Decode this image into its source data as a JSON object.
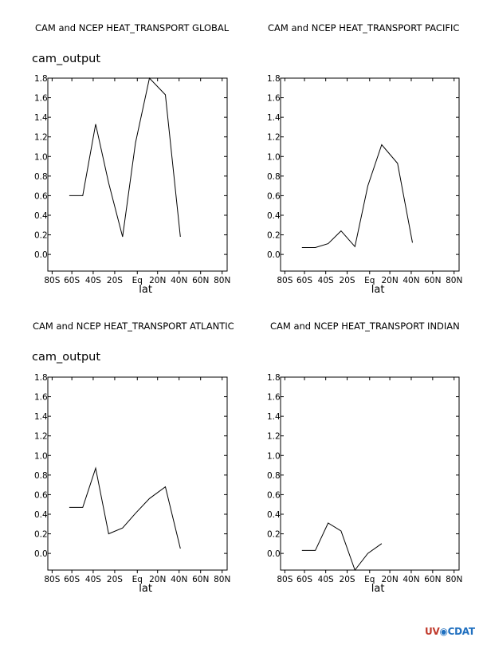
{
  "chart_data": [
    {
      "type": "line",
      "title": "CAM and NCEP HEAT_TRANSPORT GLOBAL",
      "subtitle": "cam_output",
      "xlabel": "lat",
      "ylabel": "",
      "x_ticks": [
        "80S",
        "60S",
        "40S",
        "20S",
        "Eq",
        "20N",
        "40N",
        "60N",
        "80N"
      ],
      "y_ticks": [
        "0.0",
        "0.2",
        "0.4",
        "0.6",
        "0.8",
        "1.0",
        "1.2",
        "1.4",
        "1.6",
        "1.8"
      ],
      "xlim": [
        -90,
        90
      ],
      "ylim": [
        -0.17,
        1.8
      ],
      "series": [
        {
          "x": [
            -68.5,
            -55,
            -42,
            -29,
            -15,
            -2,
            12,
            28,
            43
          ],
          "values": [
            0.6,
            0.6,
            1.33,
            0.73,
            0.18,
            1.14,
            1.8,
            1.63,
            0.18
          ]
        }
      ]
    },
    {
      "type": "line",
      "title": "CAM and NCEP HEAT_TRANSPORT PACIFIC",
      "subtitle": "",
      "xlabel": "lat",
      "ylabel": "",
      "x_ticks": [
        "80S",
        "60S",
        "40S",
        "20S",
        "Eq",
        "20N",
        "40N",
        "60N",
        "80N"
      ],
      "y_ticks": [
        "0.0",
        "0.2",
        "0.4",
        "0.6",
        "0.8",
        "1.0",
        "1.2",
        "1.4",
        "1.6",
        "1.8"
      ],
      "xlim": [
        -90,
        90
      ],
      "ylim": [
        -0.17,
        1.8
      ],
      "series": [
        {
          "x": [
            -68.5,
            -55,
            -42,
            -29,
            -15,
            -2,
            12,
            28,
            43
          ],
          "values": [
            0.07,
            0.07,
            0.11,
            0.24,
            0.08,
            0.7,
            1.12,
            0.93,
            0.12
          ]
        }
      ]
    },
    {
      "type": "line",
      "title": "CAM and NCEP HEAT_TRANSPORT ATLANTIC",
      "subtitle": "cam_output",
      "xlabel": "lat",
      "ylabel": "",
      "x_ticks": [
        "80S",
        "60S",
        "40S",
        "20S",
        "Eq",
        "20N",
        "40N",
        "60N",
        "80N"
      ],
      "y_ticks": [
        "0.0",
        "0.2",
        "0.4",
        "0.6",
        "0.8",
        "1.0",
        "1.2",
        "1.4",
        "1.6",
        "1.8"
      ],
      "xlim": [
        -90,
        90
      ],
      "ylim": [
        -0.17,
        1.8
      ],
      "series": [
        {
          "x": [
            -68.5,
            -55,
            -42,
            -29,
            -15,
            -2,
            12,
            28,
            43
          ],
          "values": [
            0.47,
            0.47,
            0.87,
            0.2,
            0.26,
            0.41,
            0.56,
            0.68,
            0.05
          ]
        }
      ]
    },
    {
      "type": "line",
      "title": "CAM and NCEP HEAT_TRANSPORT INDIAN",
      "subtitle": "",
      "xlabel": "lat",
      "ylabel": "",
      "x_ticks": [
        "80S",
        "60S",
        "40S",
        "20S",
        "Eq",
        "20N",
        "40N",
        "60N",
        "80N"
      ],
      "y_ticks": [
        "0.0",
        "0.2",
        "0.4",
        "0.6",
        "0.8",
        "1.0",
        "1.2",
        "1.4",
        "1.6",
        "1.8"
      ],
      "xlim": [
        -90,
        90
      ],
      "ylim": [
        -0.17,
        1.8
      ],
      "series": [
        {
          "x": [
            -68.5,
            -55,
            -42,
            -29,
            -15,
            -2,
            12
          ],
          "values": [
            0.03,
            0.03,
            0.31,
            0.23,
            -0.17,
            0.0,
            0.1
          ]
        }
      ]
    }
  ],
  "logo": {
    "part1": "UV",
    "part2": "CDAT",
    "mid": "◉"
  }
}
